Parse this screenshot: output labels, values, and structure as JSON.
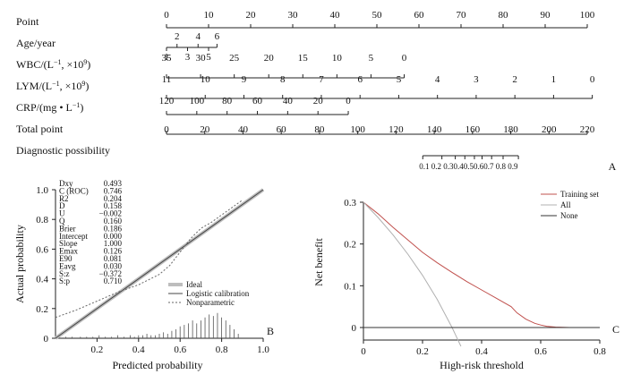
{
  "chart_data": [
    {
      "type": "nomogram",
      "panel_label": "A",
      "rows": [
        {
          "name": "Point",
          "ticks": [
            {
              "v": 0,
              "l": "0"
            },
            {
              "v": 10,
              "l": "10"
            },
            {
              "v": 20,
              "l": "20"
            },
            {
              "v": 30,
              "l": "30"
            },
            {
              "v": 40,
              "l": "40"
            },
            {
              "v": 50,
              "l": "50"
            },
            {
              "v": 60,
              "l": "60"
            },
            {
              "v": 70,
              "l": "70"
            },
            {
              "v": 80,
              "l": "80"
            },
            {
              "v": 90,
              "l": "90"
            },
            {
              "v": 100,
              "l": "100"
            }
          ]
        },
        {
          "name": "Age/year",
          "ticks": [
            {
              "v": 0,
              "l": "1",
              "side": "below"
            },
            {
              "v": 2.5,
              "l": "2",
              "side": "above"
            },
            {
              "v": 5,
              "l": "3",
              "side": "below"
            },
            {
              "v": 7.5,
              "l": "4",
              "side": "above"
            },
            {
              "v": 10,
              "l": "5",
              "side": "below"
            },
            {
              "v": 12,
              "l": "6",
              "side": "above"
            }
          ]
        },
        {
          "name": "WBC/(L",
          "name_sup": "−1",
          "name_tail": ", ×10",
          "name_sup2": "9",
          "name_end": ")",
          "ticks": [
            {
              "v": 0,
              "l": "35"
            },
            {
              "v": 8.1,
              "l": "30"
            },
            {
              "v": 16.1,
              "l": "25"
            },
            {
              "v": 24.3,
              "l": "20"
            },
            {
              "v": 32.4,
              "l": "15"
            },
            {
              "v": 40.5,
              "l": "10"
            },
            {
              "v": 48.6,
              "l": "5"
            },
            {
              "v": 56.5,
              "l": "0"
            }
          ]
        },
        {
          "name": "LYM/(L",
          "name_sup": "−1",
          "name_tail": ", ×10",
          "name_sup2": "9",
          "name_end": ")",
          "ticks": [
            {
              "v": 0,
              "l": "11"
            },
            {
              "v": 9.2,
              "l": "10"
            },
            {
              "v": 18.4,
              "l": "9"
            },
            {
              "v": 27.6,
              "l": "8"
            },
            {
              "v": 36.8,
              "l": "7"
            },
            {
              "v": 46,
              "l": "6"
            },
            {
              "v": 55.2,
              "l": "5"
            },
            {
              "v": 64.4,
              "l": "4"
            },
            {
              "v": 73.6,
              "l": "3"
            },
            {
              "v": 82.8,
              "l": "2"
            },
            {
              "v": 92,
              "l": "1"
            },
            {
              "v": 101.2,
              "l": "0"
            }
          ]
        },
        {
          "name": "CRP/(mg • L",
          "name_sup": "−1",
          "name_end": ")",
          "ticks": [
            {
              "v": 0,
              "l": "120"
            },
            {
              "v": 7.2,
              "l": "100"
            },
            {
              "v": 14.4,
              "l": "80"
            },
            {
              "v": 21.6,
              "l": "60"
            },
            {
              "v": 28.8,
              "l": "40"
            },
            {
              "v": 36,
              "l": "20"
            },
            {
              "v": 43.2,
              "l": "0"
            }
          ]
        },
        {
          "name": "Total point",
          "ticks": [
            {
              "v": 0,
              "l": "0"
            },
            {
              "v": 20,
              "l": "20"
            },
            {
              "v": 40,
              "l": "40"
            },
            {
              "v": 60,
              "l": "60"
            },
            {
              "v": 80,
              "l": "80"
            },
            {
              "v": 100,
              "l": "100"
            },
            {
              "v": 120,
              "l": "120"
            },
            {
              "v": 140,
              "l": "140"
            },
            {
              "v": 160,
              "l": "160"
            },
            {
              "v": 180,
              "l": "180"
            },
            {
              "v": 200,
              "l": "200"
            },
            {
              "v": 220,
              "l": "220"
            }
          ]
        },
        {
          "name": "Diagnostic possibility",
          "ticks": [
            {
              "v": 134,
              "l": "0.1"
            },
            {
              "v": 144,
              "l": "0.2"
            },
            {
              "v": 151,
              "l": "0.3"
            },
            {
              "v": 156,
              "l": "0.4"
            },
            {
              "v": 161,
              "l": "0.5"
            },
            {
              "v": 165,
              "l": "0.6"
            },
            {
              "v": 170,
              "l": "0.7"
            },
            {
              "v": 176,
              "l": "0.8"
            },
            {
              "v": 184,
              "l": "0.9"
            }
          ],
          "tick_text": "0.1  0.2  0.30.40.50.60.7 0.8   0.9"
        }
      ]
    },
    {
      "type": "line",
      "panel_label": "B",
      "xlabel": "Predicted probability",
      "ylabel": "Actual probability",
      "xlim": [
        0,
        1.0
      ],
      "ylim": [
        0,
        1.0
      ],
      "xticks": [
        0.2,
        0.4,
        0.6,
        0.8,
        1.0
      ],
      "xtick_labels": [
        "0.2",
        "0.4",
        "0.6",
        "0.8",
        "1.0"
      ],
      "yticks": [
        0,
        0.2,
        0.4,
        0.6,
        0.8,
        1.0
      ],
      "ytick_labels": [
        "0",
        "0.2",
        "0.4",
        "0.6",
        "0.8",
        "1.0"
      ],
      "stats": [
        {
          "k": "Dxy",
          "v": "0.493"
        },
        {
          "k": "C (ROC)",
          "v": "0.746"
        },
        {
          "k": "R2",
          "v": "0.204"
        },
        {
          "k": "D",
          "v": "0.158"
        },
        {
          "k": "U",
          "v": "−0.002"
        },
        {
          "k": "Q",
          "v": "0.160"
        },
        {
          "k": "Brier",
          "v": "0.186"
        },
        {
          "k": "Intercept",
          "v": "0.000"
        },
        {
          "k": "Slope",
          "v": "1.000"
        },
        {
          "k": "Emax",
          "v": "0.126"
        },
        {
          "k": "E90",
          "v": "0.081"
        },
        {
          "k": "Eavg",
          "v": "0.030"
        },
        {
          "k": "S:z",
          "v": "−0.372"
        },
        {
          "k": "S:p",
          "v": "0.710"
        }
      ],
      "legend": [
        "Ideal",
        "Logistic calibration",
        "Nonparametric"
      ],
      "series": [
        {
          "name": "Ideal",
          "x": [
            0,
            1.0
          ],
          "y": [
            0,
            1.0
          ]
        },
        {
          "name": "Logistic calibration",
          "x": [
            0,
            1.0
          ],
          "y": [
            0,
            1.0
          ]
        },
        {
          "name": "Nonparametric",
          "x": [
            0,
            0.1,
            0.2,
            0.3,
            0.4,
            0.5,
            0.55,
            0.6,
            0.65,
            0.7,
            0.75,
            0.8,
            0.85,
            0.9
          ],
          "y": [
            0.14,
            0.19,
            0.25,
            0.31,
            0.36,
            0.43,
            0.49,
            0.58,
            0.67,
            0.74,
            0.78,
            0.83,
            0.88,
            0.93
          ]
        }
      ],
      "histogram": {
        "x": [
          0.05,
          0.08,
          0.12,
          0.15,
          0.18,
          0.21,
          0.24,
          0.27,
          0.3,
          0.33,
          0.36,
          0.38,
          0.4,
          0.42,
          0.44,
          0.46,
          0.48,
          0.5,
          0.52,
          0.54,
          0.56,
          0.58,
          0.6,
          0.62,
          0.64,
          0.66,
          0.68,
          0.7,
          0.72,
          0.74,
          0.76,
          0.78,
          0.8,
          0.82,
          0.84,
          0.86,
          0.88
        ],
        "h": [
          0.01,
          0.01,
          0.01,
          0.01,
          0.01,
          0.02,
          0.01,
          0.01,
          0.02,
          0.01,
          0.02,
          0.01,
          0.02,
          0.02,
          0.03,
          0.02,
          0.02,
          0.03,
          0.04,
          0.03,
          0.05,
          0.06,
          0.08,
          0.09,
          0.1,
          0.12,
          0.1,
          0.12,
          0.14,
          0.16,
          0.15,
          0.17,
          0.14,
          0.12,
          0.09,
          0.06,
          0.03
        ]
      }
    },
    {
      "type": "line",
      "panel_label": "C",
      "xlabel": "High-risk threshold",
      "ylabel": "Net benefit",
      "xlim": [
        0,
        0.8
      ],
      "ylim": [
        -0.03,
        0.3
      ],
      "xticks": [
        0,
        0.2,
        0.4,
        0.6,
        0.8
      ],
      "xtick_labels": [
        "0",
        "0.2",
        "0.4",
        "0.6",
        "0.8"
      ],
      "yticks": [
        0,
        0.1,
        0.2,
        0.3
      ],
      "ytick_labels": [
        "0",
        "0.1",
        "0.2",
        "0.3"
      ],
      "legend": [
        "Training set",
        "All",
        "None"
      ],
      "series": [
        {
          "name": "Training set",
          "color": "#c0504d",
          "x": [
            0,
            0.05,
            0.1,
            0.15,
            0.2,
            0.25,
            0.3,
            0.35,
            0.4,
            0.45,
            0.5,
            0.52,
            0.55,
            0.58,
            0.6,
            0.62,
            0.65,
            0.7,
            0.75,
            0.8
          ],
          "y": [
            0.3,
            0.272,
            0.24,
            0.21,
            0.18,
            0.155,
            0.132,
            0.11,
            0.09,
            0.07,
            0.05,
            0.035,
            0.02,
            0.01,
            0.006,
            0.003,
            0.001,
            0,
            0,
            0
          ]
        },
        {
          "name": "All",
          "color": "#b0b0b0",
          "x": [
            0,
            0.05,
            0.1,
            0.15,
            0.2,
            0.25,
            0.3,
            0.33
          ],
          "y": [
            0.3,
            0.263,
            0.222,
            0.176,
            0.125,
            0.067,
            0,
            -0.045
          ]
        },
        {
          "name": "None",
          "color": "#333333",
          "x": [
            0,
            0.8
          ],
          "y": [
            0,
            0
          ]
        }
      ]
    }
  ]
}
